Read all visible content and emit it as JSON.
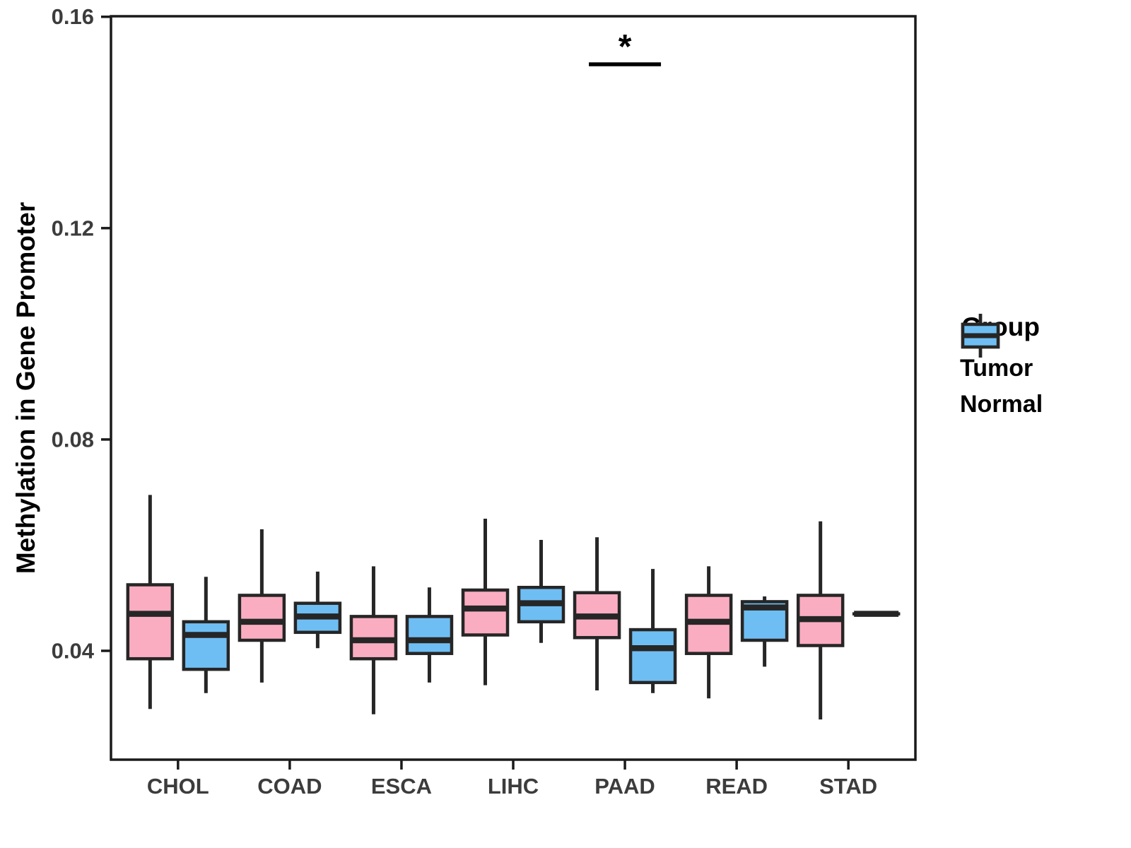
{
  "figure": {
    "background": "#ffffff"
  },
  "colors": {
    "tumor_fill": "#FAADC1",
    "normal_fill": "#6FBEF3",
    "box_stroke": "#262626",
    "axis_line": "#1a1a1a",
    "tick_label": "#3C3C3C",
    "annotation": "#000000"
  },
  "legend": {
    "title": "Group",
    "entries": [
      {
        "label": "Tumor",
        "fill": "#FAADC1"
      },
      {
        "label": "Normal",
        "fill": "#6FBEF3"
      }
    ]
  },
  "chart_data": {
    "type": "boxplot",
    "title": "",
    "xlabel": "",
    "ylabel": "Methylation in Gene Promoter",
    "legend_title": "Group",
    "legend_position": "right",
    "grid": false,
    "panel_border": true,
    "categories": [
      "CHOL",
      "COAD",
      "ESCA",
      "LIHC",
      "PAAD",
      "READ",
      "STAD"
    ],
    "yticks": [
      "0.04",
      "0.08",
      "0.12",
      "0.16"
    ],
    "ylim": [
      0.0194,
      0.1601
    ],
    "summary_format": [
      "min",
      "q1",
      "median",
      "q3",
      "max"
    ],
    "series": [
      {
        "name": "Tumor",
        "fill": "#FAADC1",
        "values": [
          [
            0.029,
            0.0385,
            0.047,
            0.0525,
            0.0695
          ],
          [
            0.034,
            0.042,
            0.0455,
            0.0505,
            0.063
          ],
          [
            0.028,
            0.0385,
            0.042,
            0.0465,
            0.056
          ],
          [
            0.0335,
            0.043,
            0.048,
            0.0515,
            0.065
          ],
          [
            0.0325,
            0.0425,
            0.0465,
            0.051,
            0.0615
          ],
          [
            0.031,
            0.0395,
            0.0455,
            0.0505,
            0.056
          ],
          [
            0.027,
            0.041,
            0.046,
            0.0505,
            0.0645
          ]
        ]
      },
      {
        "name": "Normal",
        "fill": "#6FBEF3",
        "values": [
          [
            0.032,
            0.0365,
            0.043,
            0.0455,
            0.054
          ],
          [
            0.0405,
            0.0435,
            0.0465,
            0.049,
            0.055
          ],
          [
            0.034,
            0.0395,
            0.042,
            0.0465,
            0.052
          ],
          [
            0.0415,
            0.0455,
            0.049,
            0.052,
            0.061
          ],
          [
            0.032,
            0.034,
            0.0405,
            0.044,
            0.0555
          ],
          [
            0.037,
            0.042,
            0.0482,
            0.0493,
            0.0503
          ],
          [
            0.047,
            0.047,
            0.047,
            0.047,
            0.047
          ]
        ]
      }
    ],
    "significance": {
      "label": "*",
      "category": "PAAD",
      "bar_y": 0.151
    }
  }
}
